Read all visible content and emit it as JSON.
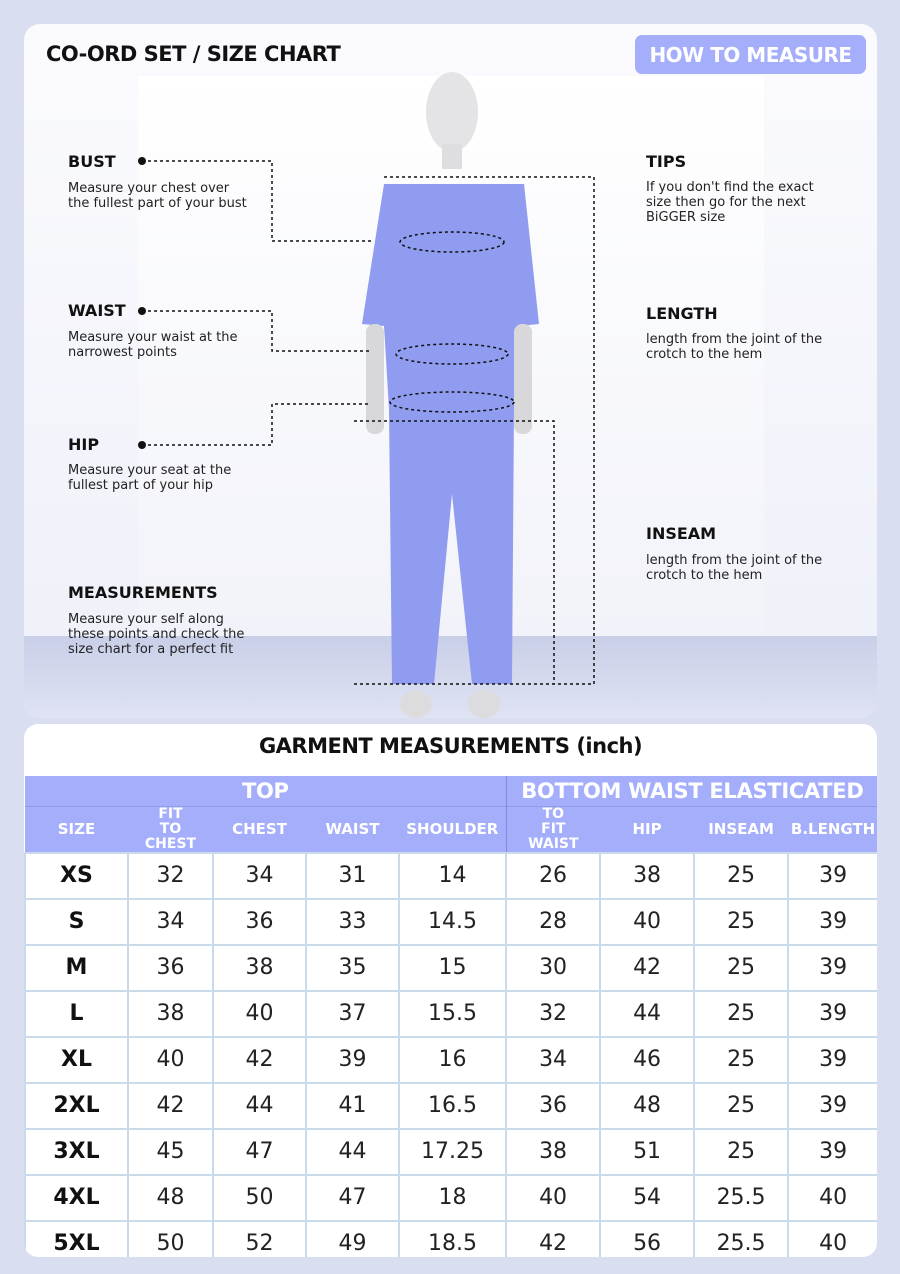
{
  "header": {
    "title": "CO-ORD SET / SIZE CHART",
    "how_to_measure": "HOW TO MEASURE"
  },
  "left_notes": [
    {
      "label": "BUST",
      "text": "Measure your chest over the fullest part of your bust"
    },
    {
      "label": "WAIST",
      "text": "Measure your waist at the narrowest points"
    },
    {
      "label": "HIP",
      "text": "Measure your seat at the fullest part of your hip"
    },
    {
      "label": "MEASUREMENTS",
      "text": "Measure your self along these points and check the size chart for a perfect fit"
    }
  ],
  "right_notes": [
    {
      "label": "TIPS",
      "text": "If you don't find the exact size then go for the next BiGGER size"
    },
    {
      "label": "LENGTH",
      "text": "length from the joint of the crotch to the hem"
    },
    {
      "label": "INSEAM",
      "text": "length from the joint of the crotch to the hem"
    }
  ],
  "colors": {
    "accent": "#a4aefa",
    "garment": "#8f9cf0",
    "background": "#d9dff0",
    "cell_border": "#c9dbeb"
  },
  "table": {
    "title": "GARMENT MEASUREMENTS (inch)",
    "groups": [
      "TOP",
      "BOTTOM WAIST ELASTICATED"
    ],
    "columns": [
      "SIZE",
      "FIT TO CHEST",
      "CHEST",
      "WAIST",
      "SHOULDER",
      "TO FIT WAIST",
      "HIP",
      "INSEAM",
      "B.LENGTH"
    ],
    "rows": [
      [
        "XS",
        "32",
        "34",
        "31",
        "14",
        "26",
        "38",
        "25",
        "39"
      ],
      [
        "S",
        "34",
        "36",
        "33",
        "14.5",
        "28",
        "40",
        "25",
        "39"
      ],
      [
        "M",
        "36",
        "38",
        "35",
        "15",
        "30",
        "42",
        "25",
        "39"
      ],
      [
        "L",
        "38",
        "40",
        "37",
        "15.5",
        "32",
        "44",
        "25",
        "39"
      ],
      [
        "XL",
        "40",
        "42",
        "39",
        "16",
        "34",
        "46",
        "25",
        "39"
      ],
      [
        "2XL",
        "42",
        "44",
        "41",
        "16.5",
        "36",
        "48",
        "25",
        "39"
      ],
      [
        "3XL",
        "45",
        "47",
        "44",
        "17.25",
        "38",
        "51",
        "25",
        "39"
      ],
      [
        "4XL",
        "48",
        "50",
        "47",
        "18",
        "40",
        "54",
        "25.5",
        "40"
      ],
      [
        "5XL",
        "50",
        "52",
        "49",
        "18.5",
        "42",
        "56",
        "25.5",
        "40"
      ]
    ]
  }
}
